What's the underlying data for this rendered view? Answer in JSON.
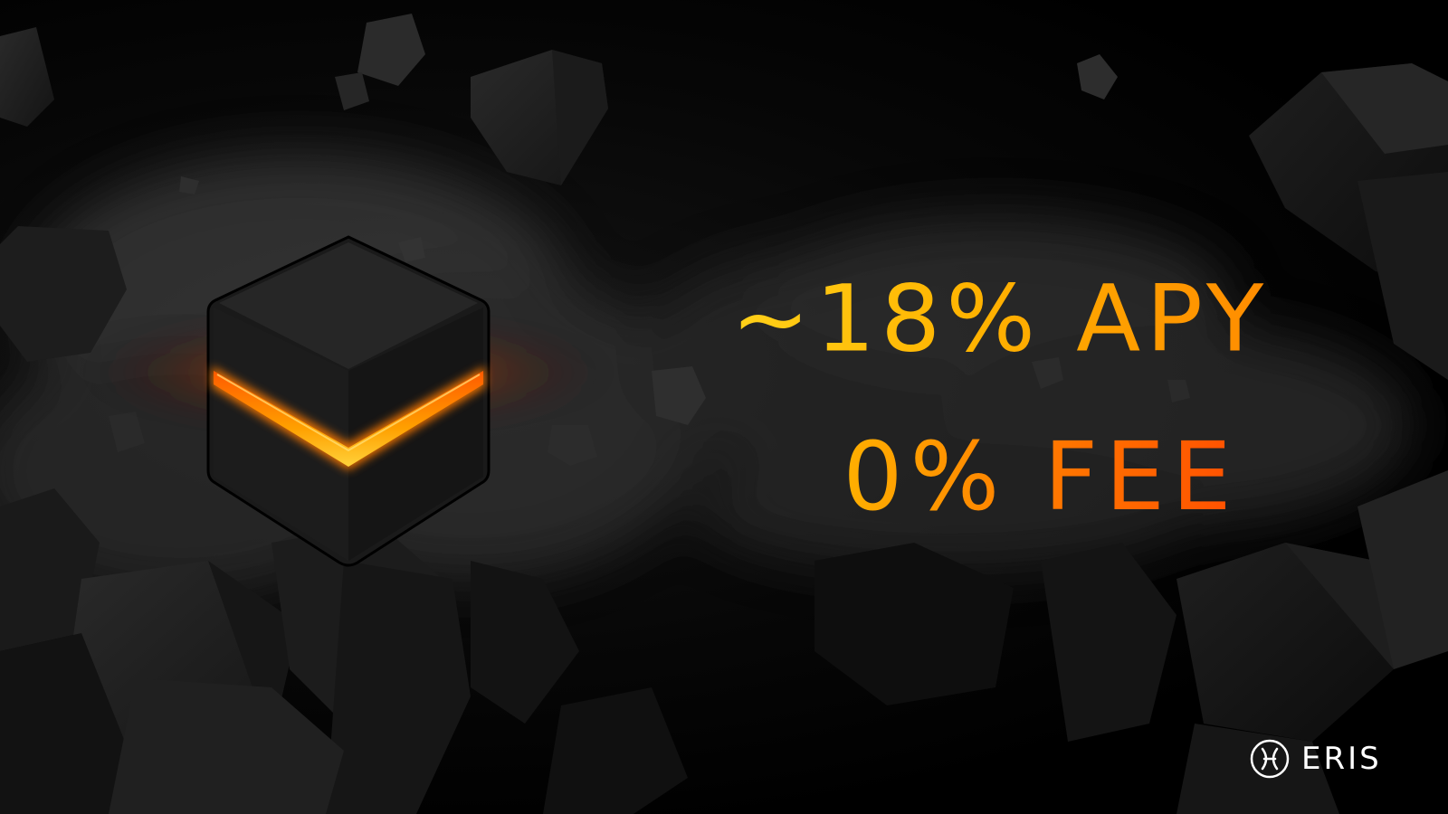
{
  "headline": {
    "line1": "~18% APY",
    "line2": "0% FEE"
  },
  "brand": {
    "name": "ERIS",
    "icon": "eris-logo-icon"
  },
  "artwork": {
    "icon": "glowing-cube-icon",
    "glow_color": "#ff6a00",
    "accent_color": "#ffb300"
  }
}
